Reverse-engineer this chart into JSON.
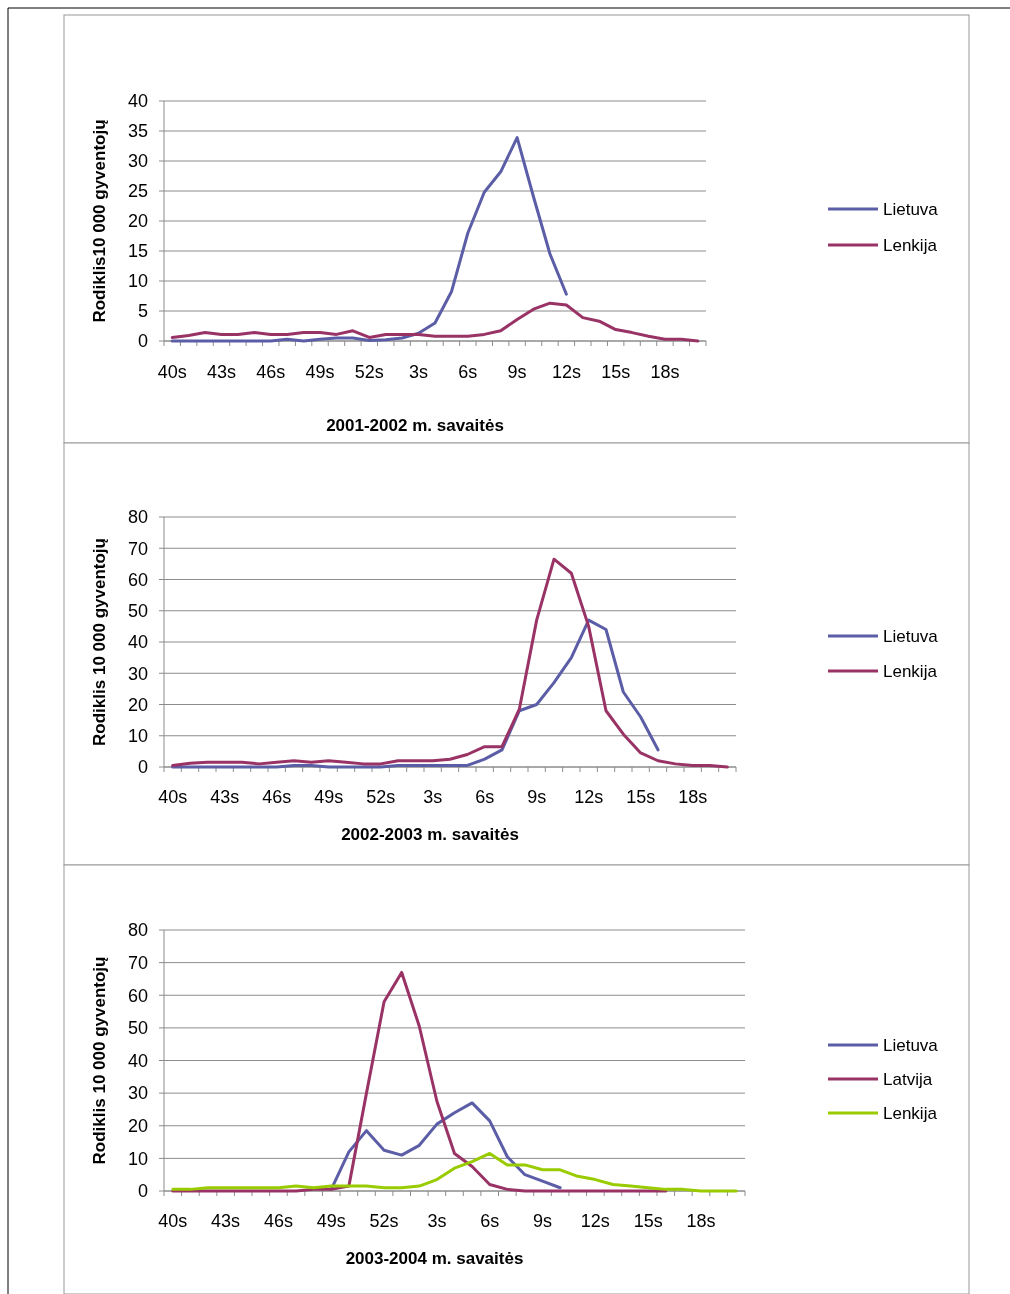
{
  "chart_data": [
    {
      "type": "line",
      "xlabel": "2001-2002 m. savaitės",
      "ylabel": "Rodiklis10 000 gyventojų",
      "categories": [
        "40s",
        null,
        null,
        "43s",
        null,
        null,
        "46s",
        null,
        null,
        "49s",
        null,
        null,
        "52s",
        null,
        null,
        "3s",
        null,
        null,
        "6s",
        null,
        null,
        "9s",
        null,
        null,
        "12s",
        null,
        null,
        "15s",
        null,
        null,
        "18s",
        null,
        null
      ],
      "ylim": [
        0,
        40
      ],
      "yticks": [
        0,
        5,
        10,
        15,
        20,
        25,
        30,
        35,
        40
      ],
      "grid": "y",
      "legend": "right",
      "series": [
        {
          "name": "Lietuva",
          "color": "#5b5ea6",
          "values": [
            0,
            0,
            0,
            0,
            0,
            0,
            0,
            0.3,
            0,
            0.3,
            0.5,
            0.5,
            0.1,
            0.2,
            0.5,
            1.3,
            3,
            8.2,
            18,
            24.8,
            28.2,
            33.9,
            24,
            14.5,
            7.8,
            null,
            null,
            null,
            null,
            null,
            null,
            null,
            null
          ]
        },
        {
          "name": "Lenkija",
          "color": "#993366",
          "values": [
            0.6,
            0.9,
            1.4,
            1.1,
            1.1,
            1.4,
            1.1,
            1.1,
            1.4,
            1.4,
            1.1,
            1.7,
            0.6,
            1.1,
            1.1,
            1.1,
            0.8,
            0.8,
            0.8,
            1.1,
            1.7,
            3.6,
            5.3,
            6.3,
            6,
            3.9,
            3.3,
            1.9,
            1.4,
            0.8,
            0.3,
            0.3,
            0
          ]
        }
      ]
    },
    {
      "type": "line",
      "xlabel": "2002-2003 m. savaitės",
      "ylabel": "Rodiklis 10 000 gyventojų",
      "categories": [
        "40s",
        null,
        null,
        "43s",
        null,
        null,
        "46s",
        null,
        null,
        "49s",
        null,
        null,
        "52s",
        null,
        null,
        "3s",
        null,
        null,
        "6s",
        null,
        null,
        "9s",
        null,
        null,
        "12s",
        null,
        null,
        "15s",
        null,
        null,
        "18s",
        null,
        null
      ],
      "ylim": [
        0,
        80
      ],
      "yticks": [
        0,
        10,
        20,
        30,
        40,
        50,
        60,
        70,
        80
      ],
      "grid": "y",
      "legend": "right",
      "series": [
        {
          "name": "Lietuva",
          "color": "#5b5ea6",
          "values": [
            0,
            0,
            0,
            0,
            0,
            0,
            0,
            0.5,
            0.5,
            0,
            0,
            0,
            0,
            0.5,
            0.5,
            0.5,
            0.5,
            0.5,
            2.5,
            5.5,
            18,
            20,
            27,
            35,
            47,
            44,
            24,
            16,
            5.5,
            null,
            null,
            null,
            null
          ]
        },
        {
          "name": "Lenkija",
          "color": "#993366",
          "values": [
            0.5,
            1.2,
            1.5,
            1.5,
            1.5,
            1,
            1.5,
            2,
            1.5,
            2,
            1.5,
            1,
            1,
            2,
            2,
            2,
            2.5,
            4,
            6.5,
            6.5,
            18.5,
            47,
            66.5,
            62,
            45,
            18,
            10.5,
            4.5,
            2,
            1,
            0.5,
            0.5,
            0
          ]
        }
      ]
    },
    {
      "type": "line",
      "xlabel": "2003-2004 m. savaitės",
      "ylabel": "Rodiklis 10 000 gyventojų",
      "categories": [
        "40s",
        null,
        null,
        "43s",
        null,
        null,
        "46s",
        null,
        null,
        "49s",
        null,
        null,
        "52s",
        null,
        null,
        "3s",
        null,
        null,
        "6s",
        null,
        null,
        "9s",
        null,
        null,
        "12s",
        null,
        null,
        "15s",
        null,
        null,
        "18s",
        null,
        null
      ],
      "ylim": [
        0,
        80
      ],
      "yticks": [
        0,
        10,
        20,
        30,
        40,
        50,
        60,
        70,
        80
      ],
      "grid": "y",
      "legend": "right",
      "series": [
        {
          "name": "Lietuva",
          "color": "#5b5ea6",
          "values": [
            null,
            null,
            null,
            null,
            null,
            null,
            null,
            null,
            null,
            0.5,
            12,
            18.5,
            12.5,
            11,
            14,
            20.5,
            24,
            27,
            21.5,
            10.5,
            5,
            3,
            1,
            null,
            null,
            null,
            null,
            null,
            null,
            null,
            null,
            null,
            null
          ]
        },
        {
          "name": "Latvija",
          "color": "#993366",
          "values": [
            0,
            0,
            0,
            0,
            0,
            0,
            0,
            0,
            0.5,
            0.5,
            1.5,
            30,
            58,
            67,
            50.5,
            27.5,
            11.5,
            7.5,
            2,
            0.5,
            0,
            0,
            0,
            0,
            0,
            0,
            0,
            0,
            0,
            null,
            null,
            null,
            null
          ]
        },
        {
          "name": "Lenkija",
          "color": "#99cc00",
          "values": [
            0.5,
            0.5,
            1,
            1,
            1,
            1,
            1,
            1.5,
            1,
            1.5,
            1.5,
            1.5,
            1,
            1,
            1.5,
            3.5,
            7,
            9,
            11.5,
            8,
            8,
            6.5,
            6.5,
            4.5,
            3.5,
            2,
            1.5,
            1,
            0.5,
            0.5,
            0,
            0,
            0
          ]
        }
      ]
    }
  ]
}
